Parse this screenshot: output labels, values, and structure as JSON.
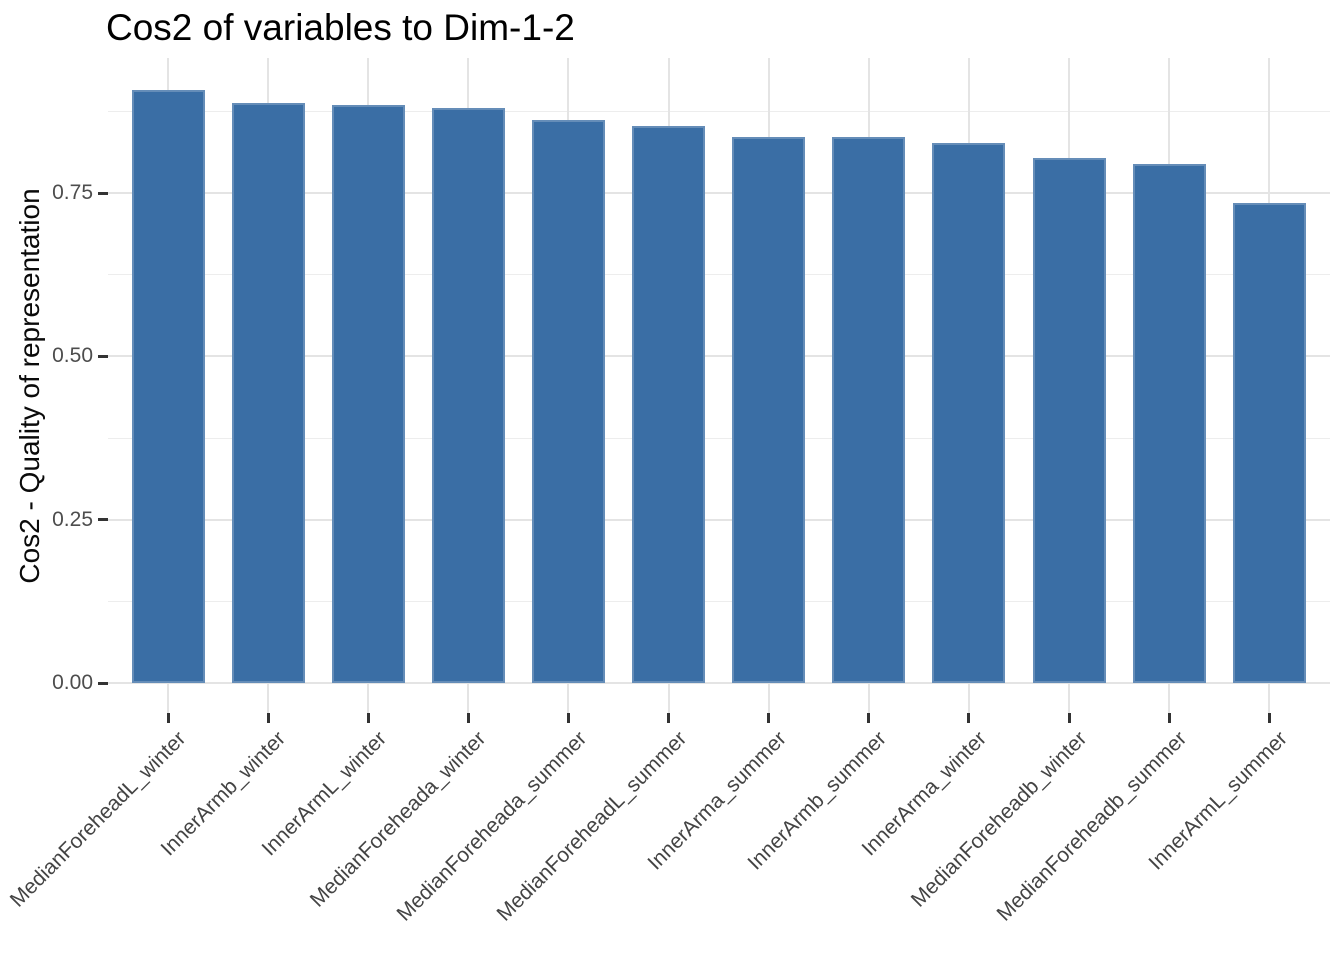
{
  "title": "Cos2 of variables to Dim-1-2",
  "chart_data": {
    "type": "bar",
    "title": "Cos2 of variables to Dim-1-2",
    "xlabel": "",
    "ylabel": "Cos2 - Quality of representation",
    "categories": [
      "MedianForeheadL_winter",
      "InnerArmb_winter",
      "InnerArmL_winter",
      "MedianForeheada_winter",
      "MedianForeheada_summer",
      "MedianForeheadL_summer",
      "InnerArma_summer",
      "InnerArmb_summer",
      "InnerArma_winter",
      "MedianForeheadb_winter",
      "MedianForeheadb_summer",
      "InnerArmL_summer"
    ],
    "values": [
      0.908,
      0.888,
      0.885,
      0.88,
      0.862,
      0.853,
      0.835,
      0.835,
      0.826,
      0.804,
      0.794,
      0.734
    ],
    "ylim": [
      0,
      0.956
    ],
    "yticks": [
      0,
      0.25,
      0.5,
      0.75
    ],
    "ytick_labels": [
      "0.00",
      "0.25",
      "0.50",
      "0.75"
    ],
    "yminorticks": [
      0.125,
      0.375,
      0.625,
      0.875
    ],
    "x_label_rotation": 45,
    "grid": true,
    "legend_position": "none",
    "bar_color": "#3a6ea5",
    "gridline_color_major": "#e4e4e4",
    "gridline_color_minor": "#ededed",
    "tick_color": "#333333",
    "axis_text_color": "#4d4d4d",
    "title_color": "#000000",
    "background_color": "#ffffff"
  }
}
